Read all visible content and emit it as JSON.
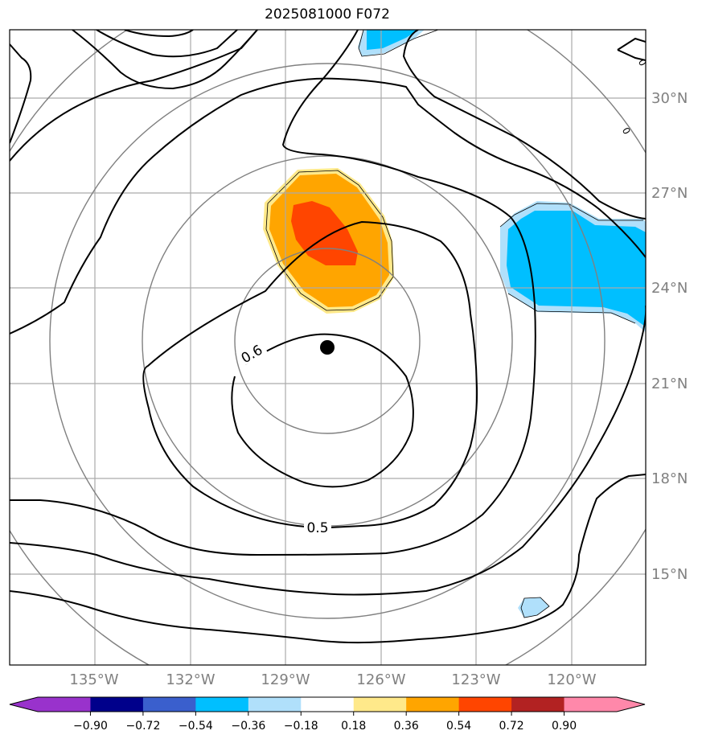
{
  "title": "2025081000 F072",
  "map": {
    "lon_labels": [
      "135°W",
      "132°W",
      "129°W",
      "126°W",
      "123°W",
      "120°W"
    ],
    "lat_labels": [
      "30°N",
      "27°N",
      "24°N",
      "21°N",
      "18°N",
      "15°N"
    ],
    "contour_labels": [
      "0.6",
      "0.5"
    ],
    "center_marker": "storm-center",
    "fill_colors": {
      "warm_light": "#ffe98a",
      "warm_mid": "#ffa500",
      "warm_strong": "#ff4500",
      "cold_light": "#b0e0fb",
      "cold_mid": "#00bfff"
    }
  },
  "colorbar": {
    "tick_labels": [
      "−0.90",
      "−0.72",
      "−0.54",
      "−0.36",
      "−0.18",
      "0.18",
      "0.36",
      "0.54",
      "0.72",
      "0.90"
    ],
    "colors": [
      "#9932cc",
      "#9932cc",
      "#00008b",
      "#3a5fcd",
      "#00bfff",
      "#b0e0fb",
      "#ffffff",
      "#ffe98a",
      "#ffa500",
      "#ff4500",
      "#b22222",
      "#ff88aa"
    ]
  }
}
